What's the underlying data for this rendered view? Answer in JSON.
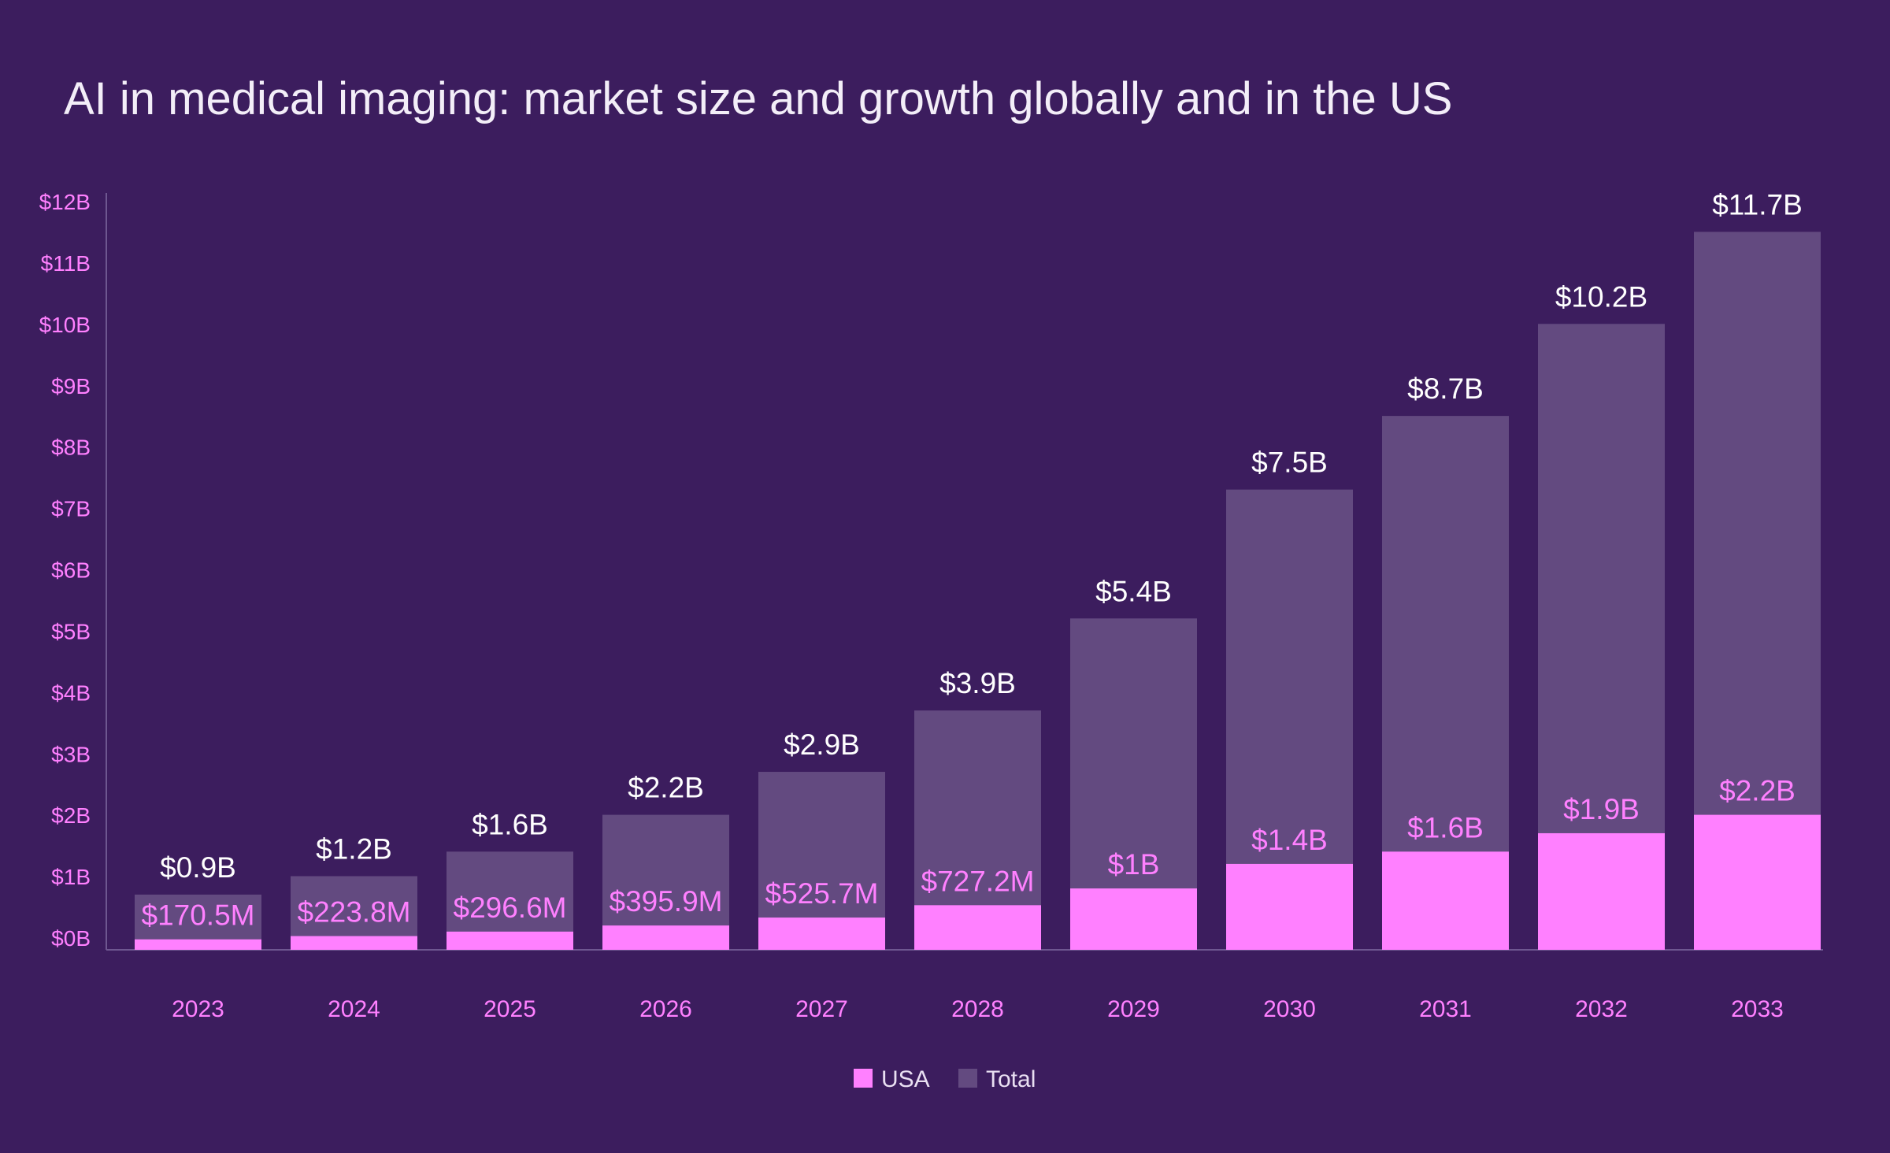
{
  "chart_data": {
    "type": "bar",
    "stacking": "overlay",
    "title": "AI in medical imaging: market size and growth globally and in the US",
    "xlabel": "",
    "ylabel": "",
    "categories": [
      "2023",
      "2024",
      "2025",
      "2026",
      "2027",
      "2028",
      "2029",
      "2030",
      "2031",
      "2032",
      "2033"
    ],
    "series": [
      {
        "name": "USA",
        "color": "#ff80ff",
        "values": [
          0.1705,
          0.2238,
          0.2966,
          0.3959,
          0.5257,
          0.7272,
          1.0,
          1.4,
          1.6,
          1.9,
          2.2
        ],
        "labels": [
          "$170.5M",
          "$223.8M",
          "$296.6M",
          "$395.9M",
          "$525.7M",
          "$727.2M",
          "$1B",
          "$1.4B",
          "$1.6B",
          "$1.9B",
          "$2.2B"
        ]
      },
      {
        "name": "Total",
        "color": "#634a80",
        "values": [
          0.9,
          1.2,
          1.6,
          2.2,
          2.9,
          3.9,
          5.4,
          7.5,
          8.7,
          10.2,
          11.7
        ],
        "labels": [
          "$0.9B",
          "$1.2B",
          "$1.6B",
          "$2.2B",
          "$2.9B",
          "$3.9B",
          "$5.4B",
          "$7.5B",
          "$8.7B",
          "$10.2B",
          "$11.7B"
        ]
      }
    ],
    "ylim": [
      0,
      12
    ],
    "yticks": [
      "$0B",
      "$1B",
      "$2B",
      "$3B",
      "$4B",
      "$5B",
      "$6B",
      "$7B",
      "$8B",
      "$9B",
      "$10B",
      "$11B",
      "$12B"
    ],
    "grid": false,
    "legend_position": "bottom-center",
    "background": "#3c1d5e"
  }
}
